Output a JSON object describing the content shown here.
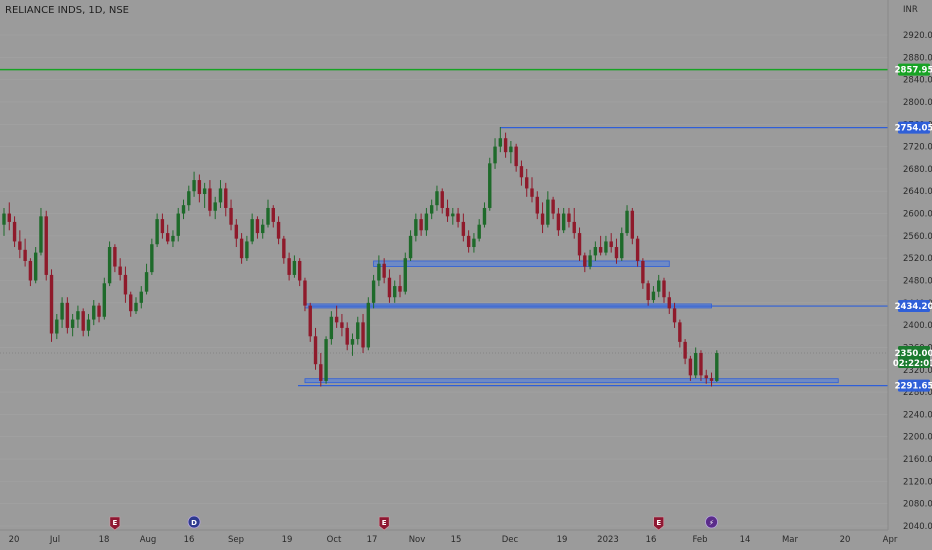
{
  "chart_data": {
    "type": "candlestick",
    "title": "RELIANCE INDS, 1D, NSE",
    "currency": "INR",
    "y_ticks": [
      "2920.00",
      "2880.00",
      "2840.00",
      "2800.00",
      "2760.00",
      "2720.00",
      "2680.00",
      "2640.00",
      "2600.00",
      "2560.00",
      "2520.00",
      "2480.00",
      "2440.00",
      "2400.00",
      "2360.00",
      "2320.00",
      "2280.00",
      "2240.00",
      "2200.00",
      "2160.00",
      "2120.00",
      "2080.00",
      "2040.00"
    ],
    "x_ticks": [
      "20",
      "Jul",
      "18",
      "Aug",
      "16",
      "Sep",
      "19",
      "Oct",
      "17",
      "Nov",
      "15",
      "Dec",
      "19",
      "2023",
      "16",
      "Feb",
      "14",
      "Mar",
      "20",
      "Apr"
    ],
    "ylim": [
      2030,
      2950
    ],
    "last_price": {
      "label": "2350.00",
      "countdown": "02:22:01",
      "color": "#1b7a2f"
    },
    "horizontal_levels": [
      {
        "label": "2857.95",
        "value": 2857.95,
        "color": "#17a324"
      },
      {
        "label": "2754.05",
        "value": 2754.05,
        "color": "#2f5fd8"
      },
      {
        "label": "2434.20",
        "value": 2434.2,
        "color": "#2f5fd8"
      },
      {
        "label": "2291.65",
        "value": 2291.65,
        "color": "#2f5fd8"
      }
    ],
    "zones": [
      {
        "low": 2505,
        "high": 2515,
        "start_index": 70,
        "end_index": 126
      },
      {
        "low": 2432,
        "high": 2438,
        "start_index": 57,
        "end_index": 134
      },
      {
        "low": 2298,
        "high": 2304,
        "start_index": 57,
        "end_index": 158
      }
    ],
    "events": [
      {
        "label": "E",
        "index": 21,
        "color": "#8e1832",
        "kind": "earnings"
      },
      {
        "label": "D",
        "index": 36,
        "color": "#2e3a8f",
        "kind": "dividend"
      },
      {
        "label": "E",
        "index": 72,
        "color": "#8e1832",
        "kind": "earnings"
      },
      {
        "label": "E",
        "index": 124,
        "color": "#8e1832",
        "kind": "earnings"
      },
      {
        "label": "⚡",
        "index": 134,
        "color": "#5a2c8a",
        "kind": "split"
      }
    ],
    "colors": {
      "up": "#1e6a2a",
      "down": "#8f1a2b"
    },
    "candles": [
      [
        2580,
        2610,
        2560,
        2600
      ],
      [
        2600,
        2620,
        2570,
        2585
      ],
      [
        2585,
        2595,
        2540,
        2550
      ],
      [
        2550,
        2570,
        2520,
        2535
      ],
      [
        2535,
        2555,
        2505,
        2515
      ],
      [
        2515,
        2520,
        2470,
        2480
      ],
      [
        2480,
        2540,
        2475,
        2530
      ],
      [
        2530,
        2610,
        2525,
        2595
      ],
      [
        2595,
        2605,
        2480,
        2490
      ],
      [
        2490,
        2500,
        2370,
        2385
      ],
      [
        2385,
        2420,
        2375,
        2410
      ],
      [
        2410,
        2450,
        2395,
        2440
      ],
      [
        2440,
        2450,
        2385,
        2395
      ],
      [
        2395,
        2420,
        2380,
        2410
      ],
      [
        2410,
        2435,
        2395,
        2425
      ],
      [
        2425,
        2430,
        2380,
        2390
      ],
      [
        2390,
        2420,
        2380,
        2410
      ],
      [
        2410,
        2445,
        2400,
        2435
      ],
      [
        2435,
        2440,
        2405,
        2415
      ],
      [
        2415,
        2485,
        2410,
        2475
      ],
      [
        2475,
        2550,
        2470,
        2540
      ],
      [
        2540,
        2545,
        2495,
        2505
      ],
      [
        2505,
        2520,
        2480,
        2490
      ],
      [
        2490,
        2505,
        2440,
        2455
      ],
      [
        2455,
        2460,
        2415,
        2425
      ],
      [
        2425,
        2450,
        2420,
        2440
      ],
      [
        2440,
        2470,
        2430,
        2460
      ],
      [
        2460,
        2510,
        2455,
        2495
      ],
      [
        2495,
        2555,
        2490,
        2545
      ],
      [
        2545,
        2600,
        2540,
        2590
      ],
      [
        2590,
        2600,
        2555,
        2565
      ],
      [
        2565,
        2580,
        2545,
        2550
      ],
      [
        2550,
        2570,
        2540,
        2560
      ],
      [
        2560,
        2610,
        2550,
        2600
      ],
      [
        2600,
        2625,
        2590,
        2615
      ],
      [
        2615,
        2650,
        2605,
        2640
      ],
      [
        2640,
        2675,
        2630,
        2660
      ],
      [
        2660,
        2670,
        2620,
        2635
      ],
      [
        2635,
        2655,
        2610,
        2645
      ],
      [
        2645,
        2660,
        2595,
        2605
      ],
      [
        2605,
        2630,
        2590,
        2620
      ],
      [
        2620,
        2660,
        2610,
        2645
      ],
      [
        2645,
        2655,
        2595,
        2610
      ],
      [
        2610,
        2625,
        2570,
        2580
      ],
      [
        2580,
        2590,
        2540,
        2555
      ],
      [
        2555,
        2565,
        2510,
        2520
      ],
      [
        2520,
        2560,
        2515,
        2550
      ],
      [
        2550,
        2600,
        2545,
        2590
      ],
      [
        2590,
        2595,
        2555,
        2565
      ],
      [
        2565,
        2590,
        2555,
        2580
      ],
      [
        2580,
        2625,
        2575,
        2610
      ],
      [
        2610,
        2615,
        2575,
        2585
      ],
      [
        2585,
        2595,
        2545,
        2555
      ],
      [
        2555,
        2560,
        2510,
        2520
      ],
      [
        2520,
        2530,
        2480,
        2490
      ],
      [
        2490,
        2525,
        2485,
        2515
      ],
      [
        2515,
        2520,
        2470,
        2480
      ],
      [
        2480,
        2485,
        2425,
        2435
      ],
      [
        2435,
        2440,
        2370,
        2380
      ],
      [
        2380,
        2395,
        2320,
        2330
      ],
      [
        2330,
        2350,
        2290,
        2300
      ],
      [
        2300,
        2380,
        2295,
        2375
      ],
      [
        2375,
        2425,
        2365,
        2415
      ],
      [
        2415,
        2435,
        2395,
        2405
      ],
      [
        2405,
        2420,
        2380,
        2395
      ],
      [
        2395,
        2405,
        2355,
        2365
      ],
      [
        2365,
        2385,
        2345,
        2375
      ],
      [
        2375,
        2415,
        2365,
        2405
      ],
      [
        2405,
        2420,
        2350,
        2360
      ],
      [
        2360,
        2450,
        2355,
        2440
      ],
      [
        2440,
        2490,
        2430,
        2480
      ],
      [
        2480,
        2525,
        2470,
        2510
      ],
      [
        2510,
        2520,
        2475,
        2485
      ],
      [
        2485,
        2500,
        2440,
        2450
      ],
      [
        2450,
        2480,
        2440,
        2470
      ],
      [
        2470,
        2490,
        2450,
        2460
      ],
      [
        2460,
        2530,
        2455,
        2520
      ],
      [
        2520,
        2570,
        2515,
        2560
      ],
      [
        2560,
        2600,
        2550,
        2590
      ],
      [
        2590,
        2600,
        2560,
        2570
      ],
      [
        2570,
        2610,
        2560,
        2600
      ],
      [
        2600,
        2625,
        2590,
        2615
      ],
      [
        2615,
        2650,
        2605,
        2640
      ],
      [
        2640,
        2645,
        2600,
        2610
      ],
      [
        2610,
        2625,
        2585,
        2595
      ],
      [
        2595,
        2610,
        2580,
        2600
      ],
      [
        2600,
        2610,
        2575,
        2585
      ],
      [
        2585,
        2600,
        2550,
        2560
      ],
      [
        2560,
        2570,
        2530,
        2540
      ],
      [
        2540,
        2565,
        2530,
        2555
      ],
      [
        2555,
        2590,
        2550,
        2580
      ],
      [
        2580,
        2620,
        2575,
        2610
      ],
      [
        2610,
        2700,
        2605,
        2690
      ],
      [
        2690,
        2735,
        2680,
        2720
      ],
      [
        2720,
        2755,
        2710,
        2735
      ],
      [
        2735,
        2745,
        2700,
        2710
      ],
      [
        2710,
        2730,
        2690,
        2720
      ],
      [
        2720,
        2725,
        2675,
        2685
      ],
      [
        2685,
        2695,
        2650,
        2665
      ],
      [
        2665,
        2680,
        2630,
        2645
      ],
      [
        2645,
        2665,
        2620,
        2630
      ],
      [
        2630,
        2640,
        2590,
        2600
      ],
      [
        2600,
        2620,
        2565,
        2580
      ],
      [
        2580,
        2640,
        2575,
        2625
      ],
      [
        2625,
        2630,
        2590,
        2600
      ],
      [
        2600,
        2610,
        2560,
        2570
      ],
      [
        2570,
        2610,
        2565,
        2600
      ],
      [
        2600,
        2610,
        2575,
        2585
      ],
      [
        2585,
        2610,
        2555,
        2565
      ],
      [
        2565,
        2575,
        2515,
        2525
      ],
      [
        2525,
        2530,
        2495,
        2505
      ],
      [
        2505,
        2535,
        2500,
        2525
      ],
      [
        2525,
        2550,
        2515,
        2540
      ],
      [
        2540,
        2560,
        2525,
        2530
      ],
      [
        2530,
        2560,
        2525,
        2550
      ],
      [
        2550,
        2565,
        2530,
        2540
      ],
      [
        2540,
        2555,
        2510,
        2520
      ],
      [
        2520,
        2575,
        2515,
        2565
      ],
      [
        2565,
        2615,
        2560,
        2605
      ],
      [
        2605,
        2610,
        2545,
        2555
      ],
      [
        2555,
        2560,
        2505,
        2515
      ],
      [
        2515,
        2520,
        2465,
        2475
      ],
      [
        2475,
        2480,
        2435,
        2445
      ],
      [
        2445,
        2470,
        2440,
        2460
      ],
      [
        2460,
        2490,
        2450,
        2480
      ],
      [
        2480,
        2485,
        2440,
        2450
      ],
      [
        2450,
        2460,
        2420,
        2430
      ],
      [
        2430,
        2440,
        2395,
        2405
      ],
      [
        2405,
        2410,
        2360,
        2370
      ],
      [
        2370,
        2375,
        2330,
        2340
      ],
      [
        2340,
        2345,
        2300,
        2310
      ],
      [
        2310,
        2360,
        2305,
        2350
      ],
      [
        2350,
        2355,
        2300,
        2310
      ],
      [
        2310,
        2320,
        2295,
        2305
      ],
      [
        2305,
        2315,
        2290,
        2300
      ],
      [
        2300,
        2355,
        2298,
        2350
      ]
    ]
  }
}
